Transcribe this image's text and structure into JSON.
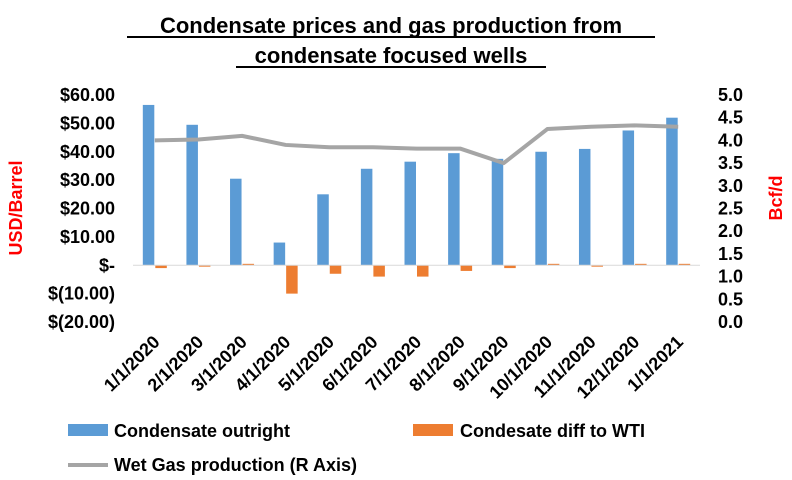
{
  "chart_data": {
    "type": "bar",
    "title_line1": "Condensate prices and gas production from",
    "title_line2": "condensate focused wells",
    "ylabel_left": "USD/Barrel",
    "ylabel_right": "Bcf/d",
    "categories": [
      "1/1/2020",
      "2/1/2020",
      "3/1/2020",
      "4/1/2020",
      "5/1/2020",
      "6/1/2020",
      "7/1/2020",
      "8/1/2020",
      "9/1/2020",
      "10/1/2020",
      "11/1/2020",
      "12/1/2020",
      "1/1/2021"
    ],
    "left_axis": {
      "ylim": [
        -20,
        60
      ],
      "ticks": [
        60,
        50,
        40,
        30,
        20,
        10,
        0,
        -10,
        -20
      ],
      "tick_labels": [
        "$60.00",
        "$50.00",
        "$40.00",
        "$30.00",
        "$20.00",
        "$10.00",
        "$-",
        "$(10.00)",
        "$(20.00)"
      ]
    },
    "right_axis": {
      "ylim": [
        0,
        5
      ],
      "ticks": [
        5.0,
        4.5,
        4.0,
        3.5,
        3.0,
        2.5,
        2.0,
        1.5,
        1.0,
        0.5,
        0.0
      ],
      "tick_labels": [
        "5.0",
        "4.5",
        "4.0",
        "3.5",
        "3.0",
        "2.5",
        "2.0",
        "1.5",
        "1.0",
        "0.5",
        "0.0"
      ]
    },
    "series": [
      {
        "name": "Condensate outright",
        "type": "bar",
        "axis": "left",
        "color": "#5b9bd5",
        "values": [
          56.5,
          49.5,
          30.5,
          8.0,
          25.0,
          34.0,
          36.5,
          39.5,
          37.5,
          40.0,
          41.0,
          47.5,
          52.0
        ]
      },
      {
        "name": "Condesate diff to WTI",
        "type": "bar",
        "axis": "left",
        "color": "#ed7d31",
        "values": [
          -1.0,
          -0.5,
          0.5,
          -10.0,
          -3.0,
          -4.0,
          -4.0,
          -2.0,
          -1.0,
          0.5,
          -0.5,
          0.5,
          0.5
        ]
      },
      {
        "name": "Wet Gas production (R Axis)",
        "type": "line",
        "axis": "right",
        "color": "#a5a5a5",
        "values": [
          4.0,
          4.02,
          4.1,
          3.9,
          3.85,
          3.85,
          3.82,
          3.82,
          3.5,
          4.25,
          4.3,
          4.33,
          4.3
        ]
      }
    ],
    "legend_position": "bottom",
    "grid": false,
    "axis_label_color": "#ff0000"
  }
}
